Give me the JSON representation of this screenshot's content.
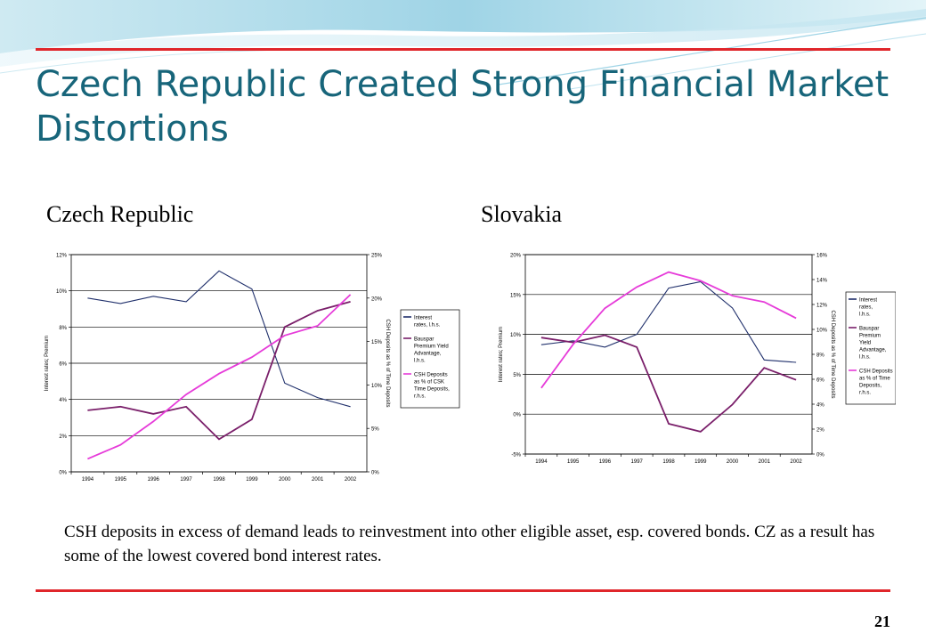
{
  "slide": {
    "title": "Czech Republic Created Strong Financial Market Distortions",
    "caption": "CSH deposits in excess of demand leads to reinvestment into other eligible asset, esp. covered bonds. CZ as a result has some of the lowest covered bond interest rates.",
    "page_number": "21",
    "colors": {
      "title": "#17657a",
      "rule": "#e0262b"
    }
  },
  "chart_data": [
    {
      "type": "line",
      "heading": "Czech Republic",
      "x": [
        "1994",
        "1995",
        "1996",
        "1997",
        "1998",
        "1999",
        "2000",
        "2001",
        "2002"
      ],
      "ylabel": "Interest rates; Premium",
      "y2label": "CSH Deposits as % of Time Deposits",
      "ylim": [
        0,
        12
      ],
      "y_ticks": [
        "0%",
        "2%",
        "4%",
        "6%",
        "8%",
        "10%",
        "12%"
      ],
      "y2lim": [
        0,
        25
      ],
      "y2_ticks": [
        "0%",
        "5%",
        "10%",
        "15%",
        "20%",
        "25%"
      ],
      "grid": true,
      "legend_position": "right",
      "series": [
        {
          "name": "Interest rates, l.h.s.",
          "axis": "left",
          "color": "#1f2f6b",
          "values": [
            9.6,
            9.3,
            9.7,
            9.4,
            11.1,
            10.1,
            4.9,
            4.1,
            3.6
          ]
        },
        {
          "name": "Bauspar Premium Yield Advantage, l.h.s.",
          "axis": "left",
          "color": "#7a1f6a",
          "values": [
            3.4,
            3.6,
            3.2,
            3.6,
            1.8,
            2.9,
            8.0,
            8.9,
            9.4
          ]
        },
        {
          "name": "CSH Deposits as % of CSK Time Deposits, r.h.s.",
          "axis": "right",
          "color": "#e63bd9",
          "values": [
            1.5,
            3.1,
            5.8,
            8.9,
            11.3,
            13.2,
            15.7,
            16.8,
            20.4
          ]
        }
      ]
    },
    {
      "type": "line",
      "heading": "Slovakia",
      "x": [
        "1994",
        "1995",
        "1996",
        "1997",
        "1998",
        "1999",
        "2000",
        "2001",
        "2002"
      ],
      "ylabel": "Interest rates; Premium",
      "y2label": "CSH Deposits as % of Time Deposits",
      "ylim": [
        -5,
        20
      ],
      "y_ticks": [
        "-5%",
        "0%",
        "5%",
        "10%",
        "15%",
        "20%"
      ],
      "y2lim": [
        0,
        16
      ],
      "y2_ticks": [
        "0%",
        "2%",
        "4%",
        "6%",
        "8%",
        "10%",
        "12%",
        "14%",
        "16%"
      ],
      "grid": true,
      "legend_position": "right",
      "series": [
        {
          "name": "Interest rates, l.h.s.",
          "axis": "left",
          "color": "#1f2f6b",
          "values": [
            8.7,
            9.2,
            8.4,
            10.0,
            15.8,
            16.6,
            13.3,
            6.8,
            6.5
          ]
        },
        {
          "name": "Bauspar Premium Yield Advantage, l.h.s.",
          "axis": "left",
          "color": "#7a1f6a",
          "values": [
            9.6,
            9.0,
            9.9,
            8.4,
            -1.2,
            -2.2,
            1.2,
            5.8,
            4.3
          ]
        },
        {
          "name": "CSH Deposits as % of Time Deposits, r.h.s.",
          "axis": "right",
          "color": "#e63bd9",
          "values": [
            5.3,
            8.8,
            11.7,
            13.4,
            14.6,
            13.9,
            12.7,
            12.2,
            10.9
          ]
        }
      ]
    }
  ]
}
